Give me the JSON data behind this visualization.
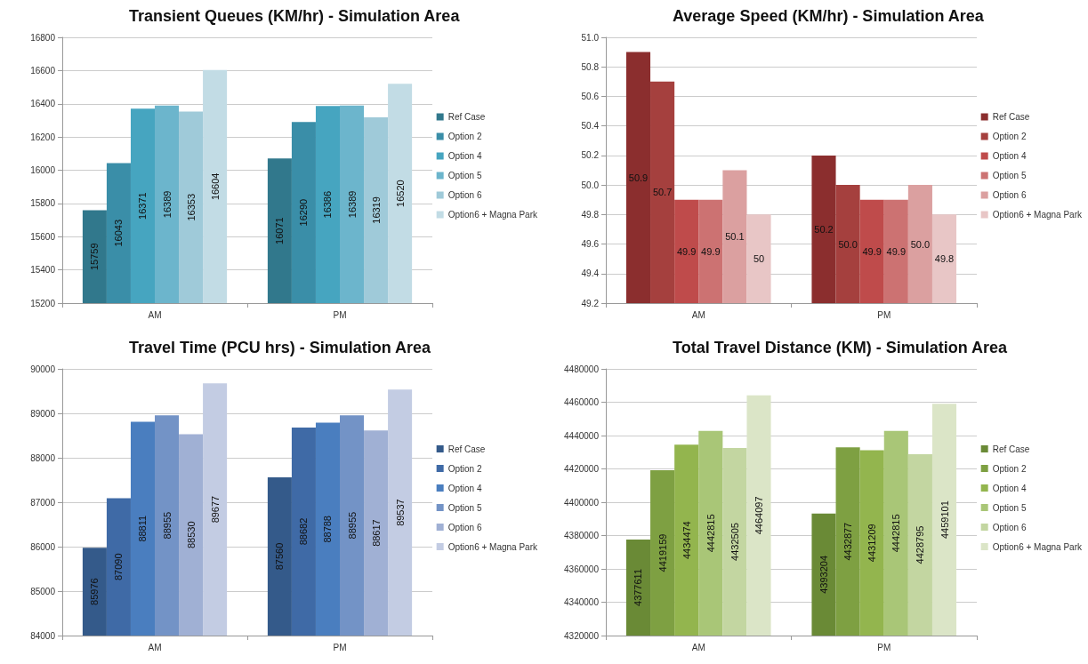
{
  "chart_data": [
    {
      "type": "bar",
      "title": "Transient Queues (KM/hr) - Simulation Area",
      "categories": [
        "AM",
        "PM"
      ],
      "ylim": [
        15200,
        16800
      ],
      "yticks": [
        15200,
        15400,
        15600,
        15800,
        16000,
        16200,
        16400,
        16600,
        16800
      ],
      "grid": "y",
      "legend": "right",
      "data_labels": true,
      "series": [
        {
          "name": "Ref Case",
          "color": "#31788c",
          "values": [
            15759,
            16071
          ]
        },
        {
          "name": "Option 2",
          "color": "#3a8ea8",
          "values": [
            16043,
            16290
          ]
        },
        {
          "name": "Option 4",
          "color": "#46a5c0",
          "values": [
            16371,
            16386
          ]
        },
        {
          "name": "Option 5",
          "color": "#6cb5cc",
          "values": [
            16389,
            16389
          ]
        },
        {
          "name": "Option 6",
          "color": "#9fcad9",
          "values": [
            16353,
            16319
          ]
        },
        {
          "name": "Option6 + Magna Park",
          "color": "#c2dce5",
          "values": [
            16604,
            16520
          ]
        }
      ]
    },
    {
      "type": "bar",
      "title": "Average Speed (KM/hr) - Simulation Area",
      "categories": [
        "AM",
        "PM"
      ],
      "ylim": [
        49.2,
        51.0
      ],
      "yticks": [
        49.2,
        49.4,
        49.6,
        49.8,
        {
          "value": 50.0,
          "label": "50.0"
        },
        50.2,
        50.4,
        50.6,
        50.8,
        {
          "value": 51.0,
          "label": "51.0"
        }
      ],
      "grid": "y",
      "legend": "right",
      "series": [
        {
          "name": "Ref Case",
          "color": "#8b2e2e",
          "values": [
            50.9,
            50.2
          ],
          "value_labels": [
            "50.9",
            "50.2"
          ]
        },
        {
          "name": "Option 2",
          "color": "#a5403e",
          "values": [
            50.7,
            50.0
          ],
          "value_labels": [
            "50.7",
            "50.0"
          ]
        },
        {
          "name": "Option 4",
          "color": "#bf4b4b",
          "values": [
            49.9,
            49.9
          ],
          "value_labels": [
            "49.9",
            "49.9"
          ]
        },
        {
          "name": "Option 5",
          "color": "#cc7272",
          "values": [
            49.9,
            49.9
          ],
          "value_labels": [
            "49.9",
            "49.9"
          ]
        },
        {
          "name": "Option 6",
          "color": "#dba0a0",
          "values": [
            50.1,
            50.0
          ],
          "value_labels": [
            "50.1",
            "50.0"
          ]
        },
        {
          "name": "Option6 + Magna Park",
          "color": "#e8c6c6",
          "values": [
            49.8,
            49.8
          ],
          "value_labels": [
            "50",
            "49.8"
          ]
        }
      ]
    },
    {
      "type": "bar",
      "title": "Travel Time (PCU hrs) - Simulation Area",
      "categories": [
        "AM",
        "PM"
      ],
      "ylim": [
        84000,
        90000
      ],
      "yticks": [
        84000,
        85000,
        86000,
        87000,
        88000,
        89000,
        90000
      ],
      "grid": "y",
      "legend": "right",
      "data_labels": true,
      "series": [
        {
          "name": "Ref Case",
          "color": "#345a8a",
          "values": [
            85976,
            87560
          ]
        },
        {
          "name": "Option 2",
          "color": "#3f6aa6",
          "values": [
            87090,
            88682
          ]
        },
        {
          "name": "Option 4",
          "color": "#4a7ebf",
          "values": [
            88811,
            88788
          ]
        },
        {
          "name": "Option 5",
          "color": "#7393c6",
          "values": [
            88955,
            88955
          ]
        },
        {
          "name": "Option 6",
          "color": "#a0b0d4",
          "values": [
            88530,
            88617
          ]
        },
        {
          "name": "Option6 + Magna Park",
          "color": "#c3cce3",
          "values": [
            89677,
            89537
          ]
        }
      ]
    },
    {
      "type": "bar",
      "title": "Total Travel Distance (KM) - Simulation Area",
      "categories": [
        "AM",
        "PM"
      ],
      "ylim": [
        4320000,
        4480000
      ],
      "yticks": [
        4320000,
        4340000,
        4360000,
        4380000,
        4400000,
        4420000,
        4440000,
        4460000,
        4480000
      ],
      "grid": "y",
      "legend": "right",
      "data_labels": true,
      "series": [
        {
          "name": "Ref Case",
          "color": "#6a8a36",
          "values": [
            4377611,
            4393204
          ]
        },
        {
          "name": "Option 2",
          "color": "#7ea042",
          "values": [
            4419159,
            4432877
          ]
        },
        {
          "name": "Option 4",
          "color": "#93b54e",
          "values": [
            4434474,
            4431209
          ]
        },
        {
          "name": "Option 5",
          "color": "#a9c677",
          "values": [
            4442815,
            4442815
          ]
        },
        {
          "name": "Option 6",
          "color": "#c3d6a1",
          "values": [
            4432505,
            4428795
          ]
        },
        {
          "name": "Option6 + Magna Park",
          "color": "#dbe5c7",
          "values": [
            4464097,
            4459101
          ]
        }
      ]
    }
  ]
}
